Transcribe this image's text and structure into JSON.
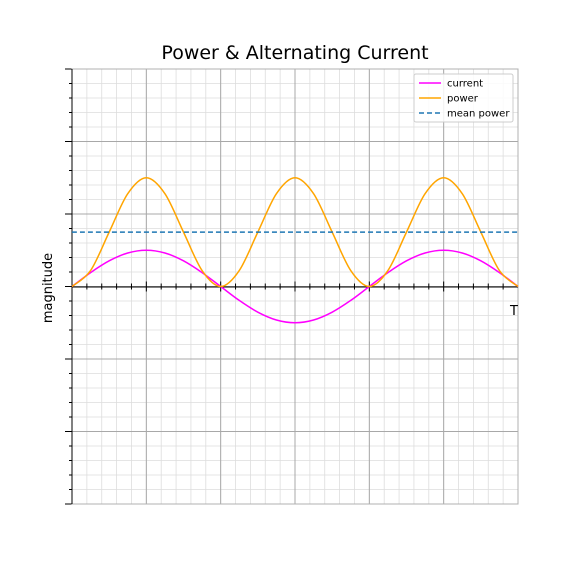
{
  "chart_data": {
    "type": "line",
    "title": "Power & Alternating Current",
    "ylabel": "magnitude",
    "xlabel": "T",
    "xlim": [
      0,
      3
    ],
    "ylim": [
      -1.5,
      1.5
    ],
    "grid": true,
    "legend_position": "top-right",
    "series": [
      {
        "name": "current",
        "color": "#ff00ff",
        "style": "solid",
        "x": [
          0,
          0.125,
          0.25,
          0.375,
          0.5,
          0.625,
          0.75,
          0.875,
          1,
          1.125,
          1.25,
          1.375,
          1.5,
          1.625,
          1.75,
          1.875,
          2,
          2.125,
          2.25,
          2.375,
          2.5,
          2.625,
          2.75,
          2.875,
          3
        ],
        "values": [
          0,
          0.096,
          0.177,
          0.231,
          0.25,
          0.231,
          0.177,
          0.096,
          0,
          -0.096,
          -0.177,
          -0.231,
          -0.25,
          -0.231,
          -0.177,
          -0.096,
          0,
          0.096,
          0.177,
          0.231,
          0.25,
          0.231,
          0.177,
          0.096,
          0
        ]
      },
      {
        "name": "power",
        "color": "#ffa500",
        "style": "solid",
        "x": [
          0,
          0.125,
          0.25,
          0.375,
          0.5,
          0.625,
          0.75,
          0.875,
          1,
          1.125,
          1.25,
          1.375,
          1.5,
          1.625,
          1.75,
          1.875,
          2,
          2.125,
          2.25,
          2.375,
          2.5,
          2.625,
          2.75,
          2.875,
          3
        ],
        "values": [
          0,
          0.11,
          0.375,
          0.64,
          0.75,
          0.64,
          0.375,
          0.11,
          0,
          0.11,
          0.375,
          0.64,
          0.75,
          0.64,
          0.375,
          0.11,
          0,
          0.11,
          0.375,
          0.64,
          0.75,
          0.64,
          0.375,
          0.11,
          0
        ]
      },
      {
        "name": "mean power",
        "color": "#1f77b4",
        "style": "dashed",
        "x": [
          0,
          3
        ],
        "values": [
          0.375,
          0.375
        ]
      }
    ]
  }
}
